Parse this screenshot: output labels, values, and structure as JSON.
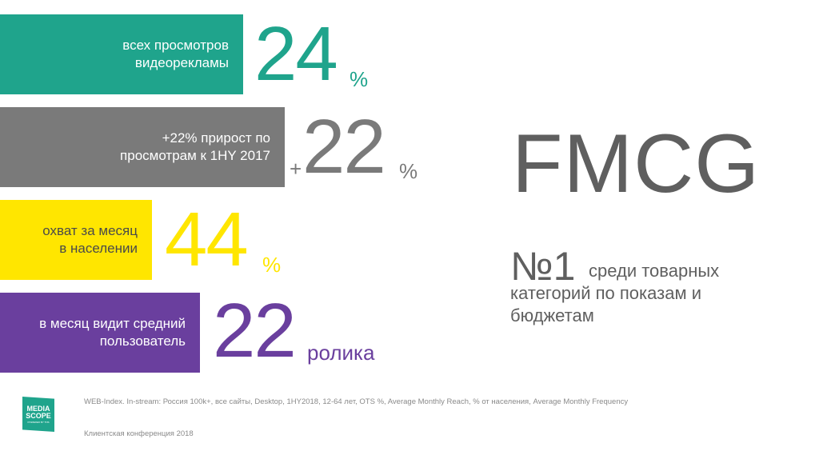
{
  "colors": {
    "teal": "#1fa48c",
    "gray": "#7a7a7a",
    "yellow": "#ffe600",
    "purple": "#6a3f9e",
    "text_gray": "#5f5f5f"
  },
  "stats": [
    {
      "label_lines": [
        "всех просмотров",
        "видеорекламы"
      ],
      "prefix": "",
      "value": "24",
      "suffix": "%"
    },
    {
      "label_lines": [
        "+22% прирост по",
        "просмотрам к 1HY 2017"
      ],
      "prefix": "+",
      "value": "22",
      "suffix": "%"
    },
    {
      "label_lines": [
        "охват за месяц",
        "в населении"
      ],
      "prefix": "",
      "value": "44",
      "suffix": "%"
    },
    {
      "label_lines": [
        "в месяц видит средний",
        "пользователь"
      ],
      "prefix": "",
      "value": "22",
      "suffix": "ролика"
    }
  ],
  "category": "FMCG",
  "rank": {
    "number": "№1",
    "text_line1": "среди товарных",
    "text_line2": "категорий по показам и",
    "text_line3": "бюджетам"
  },
  "logo": {
    "line1": "MEDIA",
    "line2": "SCOPE",
    "tagline": "POWERED BY TNS"
  },
  "footnotes": {
    "source": "WEB-Index. In-stream: Россия 100k+, все сайты, Desktop, 1HY2018, 12-64 лет, OTS %, Average Monthly Reach, % от населения, Average Monthly Frequency",
    "event": "Клиентская конференция 2018"
  }
}
